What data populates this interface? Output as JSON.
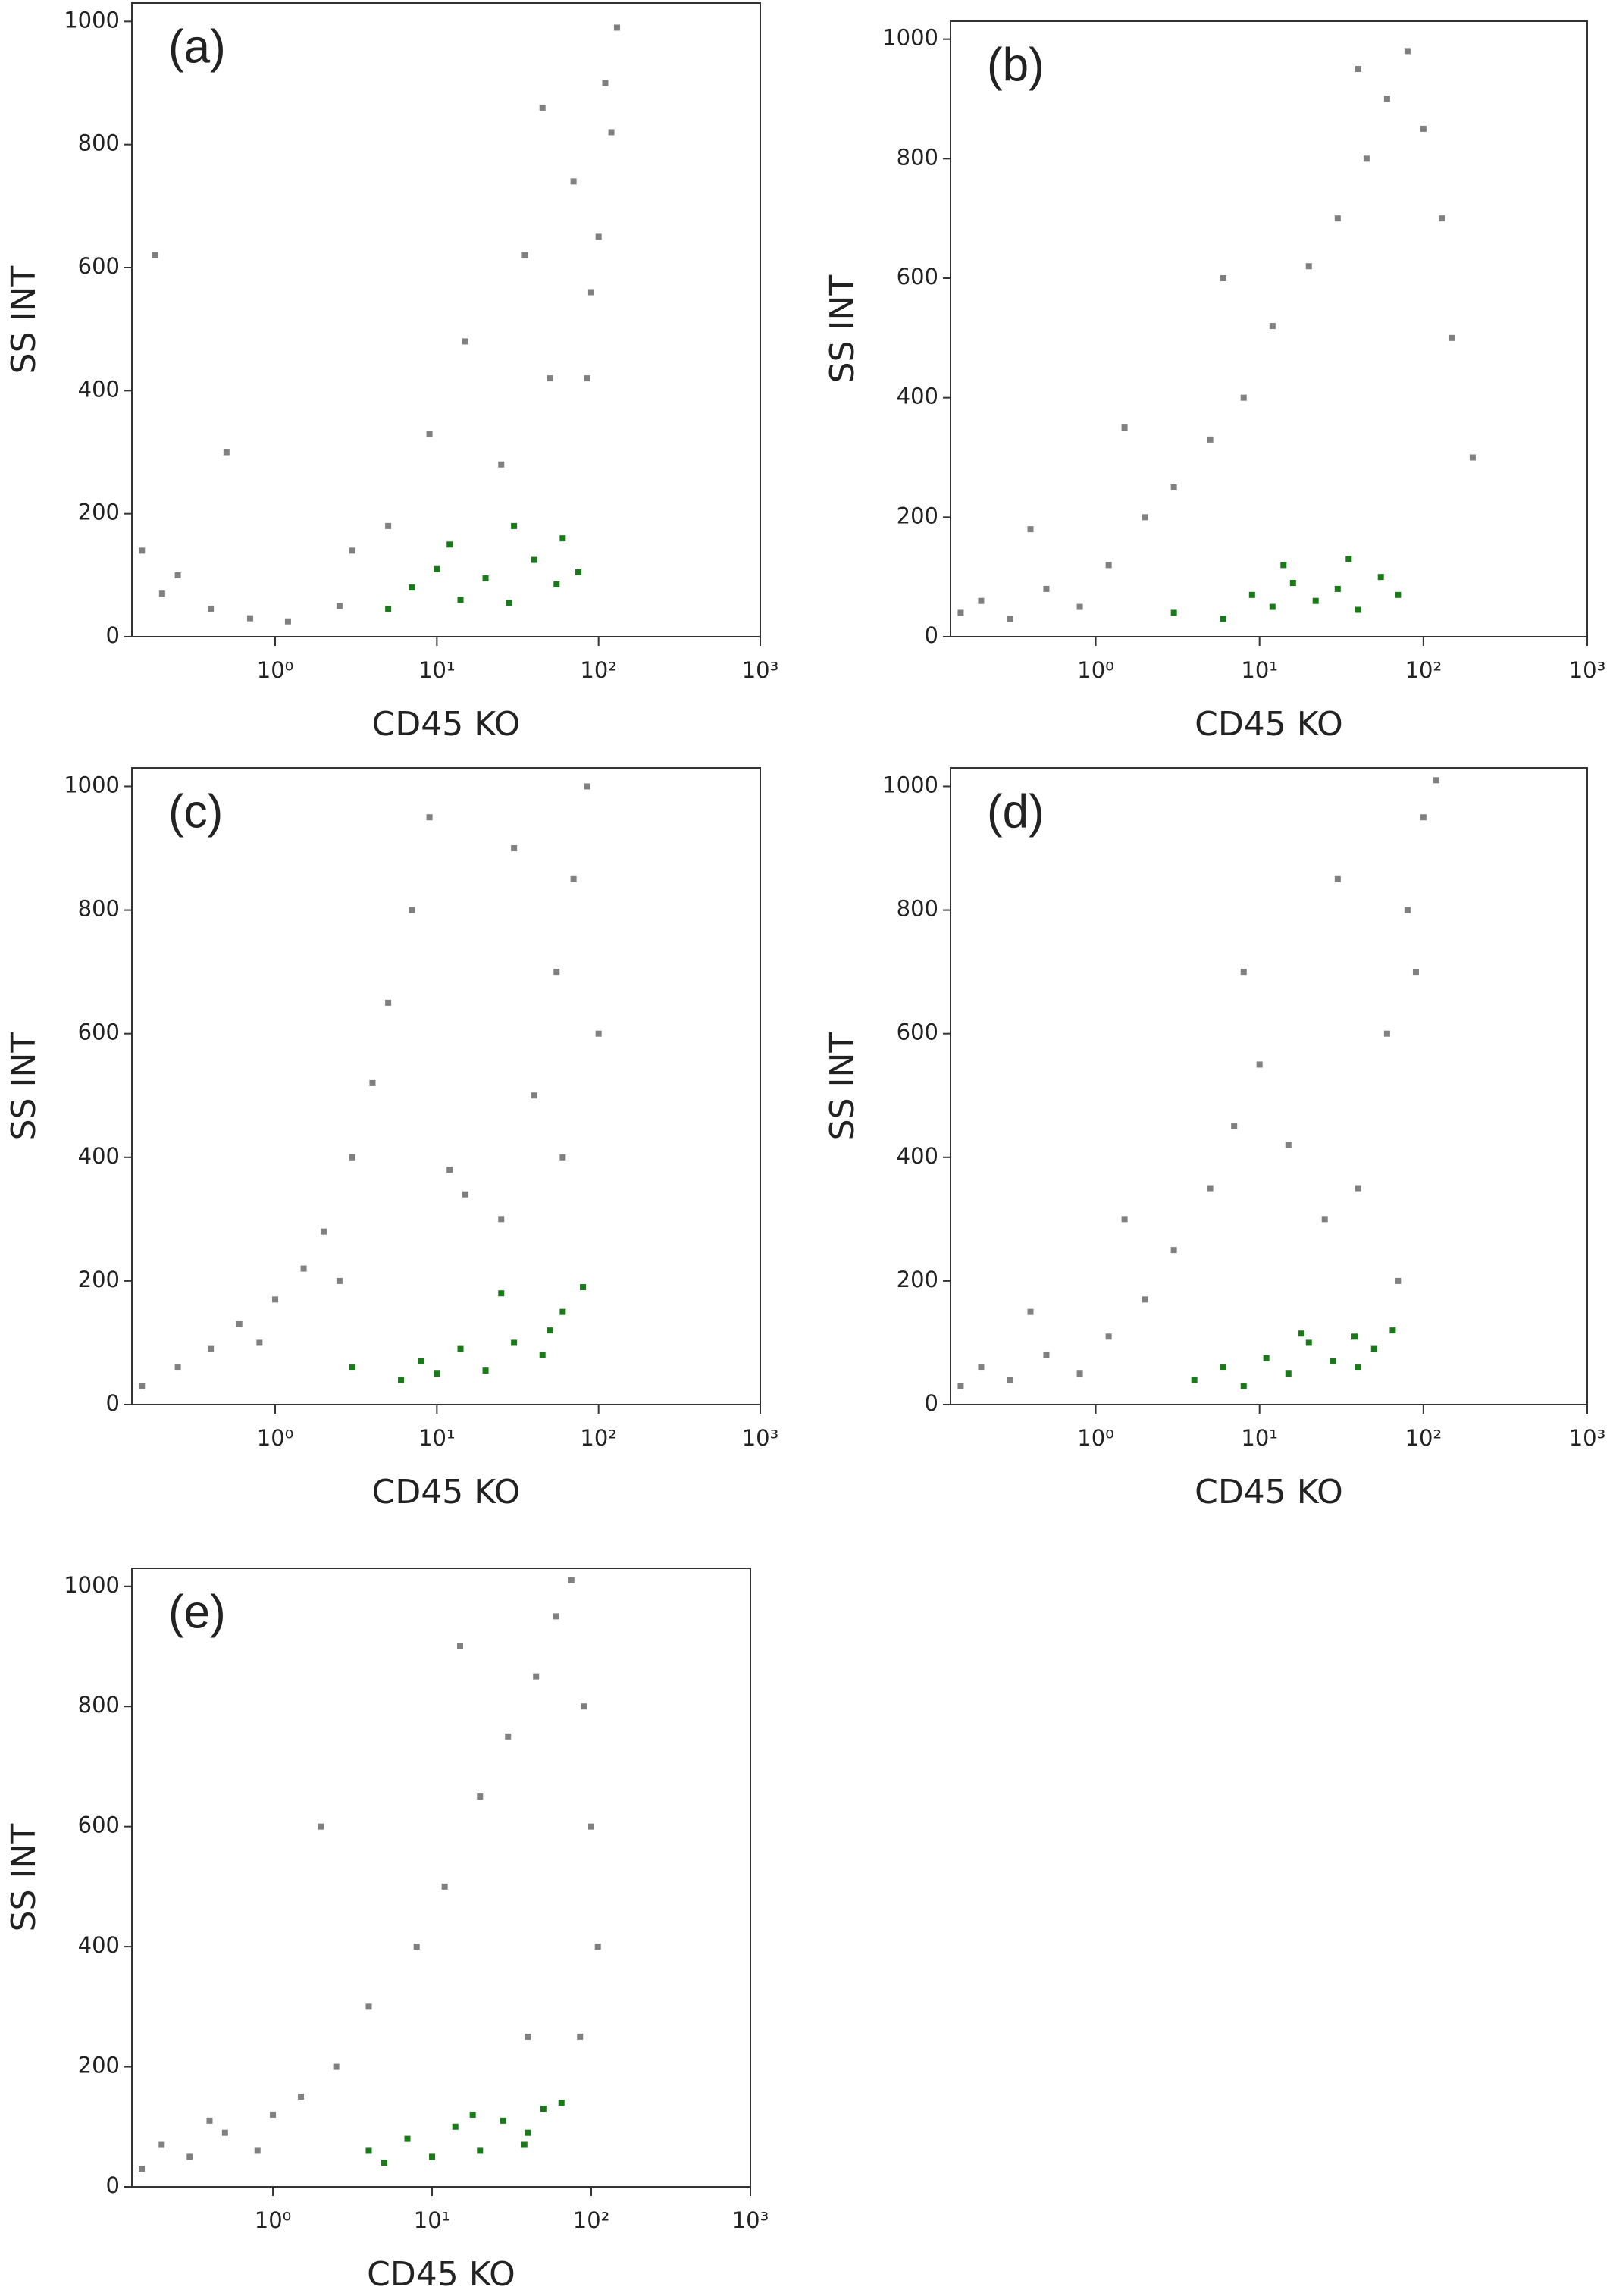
{
  "chart_data": [
    {
      "type": "scatter",
      "panel_label": "(a)",
      "xlabel": "CD45 KO",
      "ylabel": "SS INT",
      "xscale": "log",
      "xlim": [
        0.13,
        1000
      ],
      "ylim": [
        0,
        1030
      ],
      "xticks": [
        {
          "value": 1,
          "label": "10⁰"
        },
        {
          "value": 10,
          "label": "10¹"
        },
        {
          "value": 100,
          "label": "10²"
        },
        {
          "value": 1000,
          "label": "10³"
        }
      ],
      "yticks": [
        0,
        200,
        400,
        600,
        800,
        1000
      ],
      "series": [
        {
          "color": "#808080",
          "x": [
            0.15,
            0.2,
            0.25,
            0.4,
            0.7,
            1.2,
            2.5,
            5,
            9,
            15,
            25,
            35,
            50,
            70,
            90,
            110,
            130,
            120,
            100,
            85,
            0.18,
            0.5,
            3,
            45
          ],
          "y": [
            140,
            70,
            100,
            45,
            30,
            25,
            50,
            180,
            330,
            480,
            280,
            620,
            420,
            740,
            560,
            900,
            990,
            820,
            650,
            420,
            620,
            300,
            140,
            860
          ]
        },
        {
          "color": "#1a7a1a",
          "x": [
            5,
            7,
            10,
            14,
            20,
            28,
            40,
            55,
            75,
            12,
            30,
            60
          ],
          "y": [
            45,
            80,
            110,
            60,
            95,
            55,
            125,
            85,
            105,
            150,
            180,
            160
          ]
        }
      ]
    },
    {
      "type": "scatter",
      "panel_label": "(b)",
      "xlabel": "CD45 KO",
      "ylabel": "SS INT",
      "xscale": "log",
      "xlim": [
        0.13,
        1000
      ],
      "ylim": [
        0,
        1030
      ],
      "xticks": [
        {
          "value": 1,
          "label": "10⁰"
        },
        {
          "value": 10,
          "label": "10¹"
        },
        {
          "value": 100,
          "label": "10²"
        },
        {
          "value": 1000,
          "label": "10³"
        }
      ],
      "yticks": [
        0,
        200,
        400,
        600,
        800,
        1000
      ],
      "series": [
        {
          "color": "#808080",
          "x": [
            0.15,
            0.2,
            0.3,
            0.5,
            0.8,
            1.2,
            2,
            3,
            5,
            8,
            12,
            20,
            30,
            45,
            60,
            80,
            100,
            130,
            150,
            200,
            0.4,
            1.5,
            6,
            40
          ],
          "y": [
            40,
            60,
            30,
            80,
            50,
            120,
            200,
            250,
            330,
            400,
            520,
            620,
            700,
            800,
            900,
            980,
            850,
            700,
            500,
            300,
            180,
            350,
            600,
            950
          ]
        },
        {
          "color": "#1a7a1a",
          "x": [
            3,
            6,
            9,
            12,
            16,
            22,
            30,
            40,
            55,
            70,
            14,
            35
          ],
          "y": [
            40,
            30,
            70,
            50,
            90,
            60,
            80,
            45,
            100,
            70,
            120,
            130
          ]
        }
      ]
    },
    {
      "type": "scatter",
      "panel_label": "(c)",
      "xlabel": "CD45 KO",
      "ylabel": "SS INT",
      "xscale": "log",
      "xlim": [
        0.13,
        1000
      ],
      "ylim": [
        0,
        1030
      ],
      "xticks": [
        {
          "value": 1,
          "label": "10⁰"
        },
        {
          "value": 10,
          "label": "10¹"
        },
        {
          "value": 100,
          "label": "10²"
        },
        {
          "value": 1000,
          "label": "10³"
        }
      ],
      "yticks": [
        0,
        200,
        400,
        600,
        800,
        1000
      ],
      "series": [
        {
          "color": "#808080",
          "x": [
            0.15,
            0.25,
            0.4,
            0.6,
            1,
            1.5,
            2,
            3,
            4,
            5,
            7,
            9,
            12,
            15,
            25,
            40,
            55,
            70,
            85,
            100,
            0.8,
            2.5,
            30,
            60
          ],
          "y": [
            30,
            60,
            90,
            130,
            170,
            220,
            280,
            400,
            520,
            650,
            800,
            950,
            380,
            340,
            300,
            500,
            700,
            850,
            1000,
            600,
            100,
            200,
            900,
            400
          ]
        },
        {
          "color": "#1a7a1a",
          "x": [
            3,
            6,
            8,
            10,
            14,
            20,
            30,
            45,
            60,
            80,
            25,
            50
          ],
          "y": [
            60,
            40,
            70,
            50,
            90,
            55,
            100,
            80,
            150,
            190,
            180,
            120
          ]
        }
      ]
    },
    {
      "type": "scatter",
      "panel_label": "(d)",
      "xlabel": "CD45 KO",
      "ylabel": "SS INT",
      "xscale": "log",
      "xlim": [
        0.13,
        1000
      ],
      "ylim": [
        0,
        1030
      ],
      "xticks": [
        {
          "value": 1,
          "label": "10⁰"
        },
        {
          "value": 10,
          "label": "10¹"
        },
        {
          "value": 100,
          "label": "10²"
        },
        {
          "value": 1000,
          "label": "10³"
        }
      ],
      "yticks": [
        0,
        200,
        400,
        600,
        800,
        1000
      ],
      "series": [
        {
          "color": "#808080",
          "x": [
            0.15,
            0.2,
            0.3,
            0.5,
            0.8,
            1.2,
            2,
            3,
            5,
            7,
            10,
            15,
            25,
            40,
            60,
            80,
            100,
            120,
            90,
            70,
            0.4,
            1.5,
            8,
            30
          ],
          "y": [
            30,
            60,
            40,
            80,
            50,
            110,
            170,
            250,
            350,
            450,
            550,
            420,
            300,
            350,
            600,
            800,
            950,
            1010,
            700,
            200,
            150,
            300,
            700,
            850
          ]
        },
        {
          "color": "#1a7a1a",
          "x": [
            4,
            6,
            8,
            11,
            15,
            20,
            28,
            38,
            50,
            65,
            18,
            40
          ],
          "y": [
            40,
            60,
            30,
            75,
            50,
            100,
            70,
            110,
            90,
            120,
            115,
            60
          ]
        }
      ]
    },
    {
      "type": "scatter",
      "panel_label": "(e)",
      "xlabel": "CD45 KO",
      "ylabel": "SS INT",
      "xscale": "log",
      "xlim": [
        0.13,
        1000
      ],
      "ylim": [
        0,
        1030
      ],
      "xticks": [
        {
          "value": 1,
          "label": "10⁰"
        },
        {
          "value": 10,
          "label": "10¹"
        },
        {
          "value": 100,
          "label": "10²"
        },
        {
          "value": 1000,
          "label": "10³"
        }
      ],
      "yticks": [
        0,
        200,
        400,
        600,
        800,
        1000
      ],
      "series": [
        {
          "color": "#808080",
          "x": [
            0.15,
            0.2,
            0.3,
            0.5,
            0.8,
            1,
            1.5,
            2.5,
            4,
            8,
            12,
            20,
            30,
            45,
            60,
            75,
            90,
            100,
            110,
            85,
            0.4,
            2,
            15,
            40
          ],
          "y": [
            30,
            70,
            50,
            90,
            60,
            120,
            150,
            200,
            300,
            400,
            500,
            650,
            750,
            850,
            950,
            1010,
            800,
            600,
            400,
            250,
            110,
            600,
            900,
            250
          ]
        },
        {
          "color": "#1a7a1a",
          "x": [
            4,
            5,
            7,
            10,
            14,
            20,
            28,
            38,
            50,
            65,
            18,
            40
          ],
          "y": [
            60,
            40,
            80,
            50,
            100,
            60,
            110,
            70,
            130,
            140,
            120,
            90
          ]
        }
      ]
    }
  ]
}
